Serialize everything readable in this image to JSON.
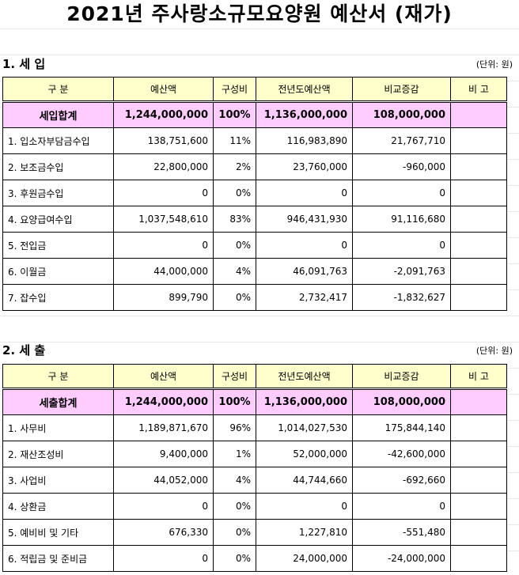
{
  "title": "2021년 주사랑소규모요양원 예산서 (재가)",
  "headers": [
    "구    분",
    "예산액",
    "구성비",
    "전년도예산액",
    "비교증감",
    "비 고"
  ],
  "income": {
    "section_title": "1. 세  입",
    "unit": "(단위: 원)",
    "total": {
      "name": "세입합계",
      "budget": "1,244,000,000",
      "ratio": "100%",
      "prev": "1,136,000,000",
      "diff": "108,000,000",
      "note": ""
    },
    "rows": [
      {
        "name": "1. 입소자부담금수입",
        "budget": "138,751,600",
        "ratio": "11%",
        "prev": "116,983,890",
        "diff": "21,767,710",
        "note": ""
      },
      {
        "name": "2. 보조금수입",
        "budget": "22,800,000",
        "ratio": "2%",
        "prev": "23,760,000",
        "diff": "-960,000",
        "note": ""
      },
      {
        "name": "3. 후원금수입",
        "budget": "0",
        "ratio": "0%",
        "prev": "0",
        "diff": "0",
        "note": ""
      },
      {
        "name": "4. 요양급여수입",
        "budget": "1,037,548,610",
        "ratio": "83%",
        "prev": "946,431,930",
        "diff": "91,116,680",
        "note": ""
      },
      {
        "name": "5. 전입금",
        "budget": "0",
        "ratio": "0%",
        "prev": "0",
        "diff": "0",
        "note": ""
      },
      {
        "name": "6. 이월금",
        "budget": "44,000,000",
        "ratio": "4%",
        "prev": "46,091,763",
        "diff": "-2,091,763",
        "note": ""
      },
      {
        "name": "7. 잡수입",
        "budget": "899,790",
        "ratio": "0%",
        "prev": "2,732,417",
        "diff": "-1,832,627",
        "note": ""
      }
    ]
  },
  "expense": {
    "section_title": "2. 세  출",
    "unit": "(단위: 원)",
    "total": {
      "name": "세출합계",
      "budget": "1,244,000,000",
      "ratio": "100%",
      "prev": "1,136,000,000",
      "diff": "108,000,000",
      "note": ""
    },
    "rows": [
      {
        "name": "1. 사무비",
        "budget": "1,189,871,670",
        "ratio": "96%",
        "prev": "1,014,027,530",
        "diff": "175,844,140",
        "note": ""
      },
      {
        "name": "2. 재산조성비",
        "budget": "9,400,000",
        "ratio": "1%",
        "prev": "52,000,000",
        "diff": "-42,600,000",
        "note": ""
      },
      {
        "name": "3. 사업비",
        "budget": "44,052,000",
        "ratio": "4%",
        "prev": "44,744,660",
        "diff": "-692,660",
        "note": ""
      },
      {
        "name": "4. 상환금",
        "budget": "0",
        "ratio": "0%",
        "prev": "0",
        "diff": "0",
        "note": ""
      },
      {
        "name": "5. 예비비 및 기타",
        "budget": "676,330",
        "ratio": "0%",
        "prev": "1,227,810",
        "diff": "-551,480",
        "note": ""
      },
      {
        "name": "6. 적립금 및 준비금",
        "budget": "0",
        "ratio": "0%",
        "prev": "24,000,000",
        "diff": "-24,000,000",
        "note": ""
      }
    ]
  }
}
